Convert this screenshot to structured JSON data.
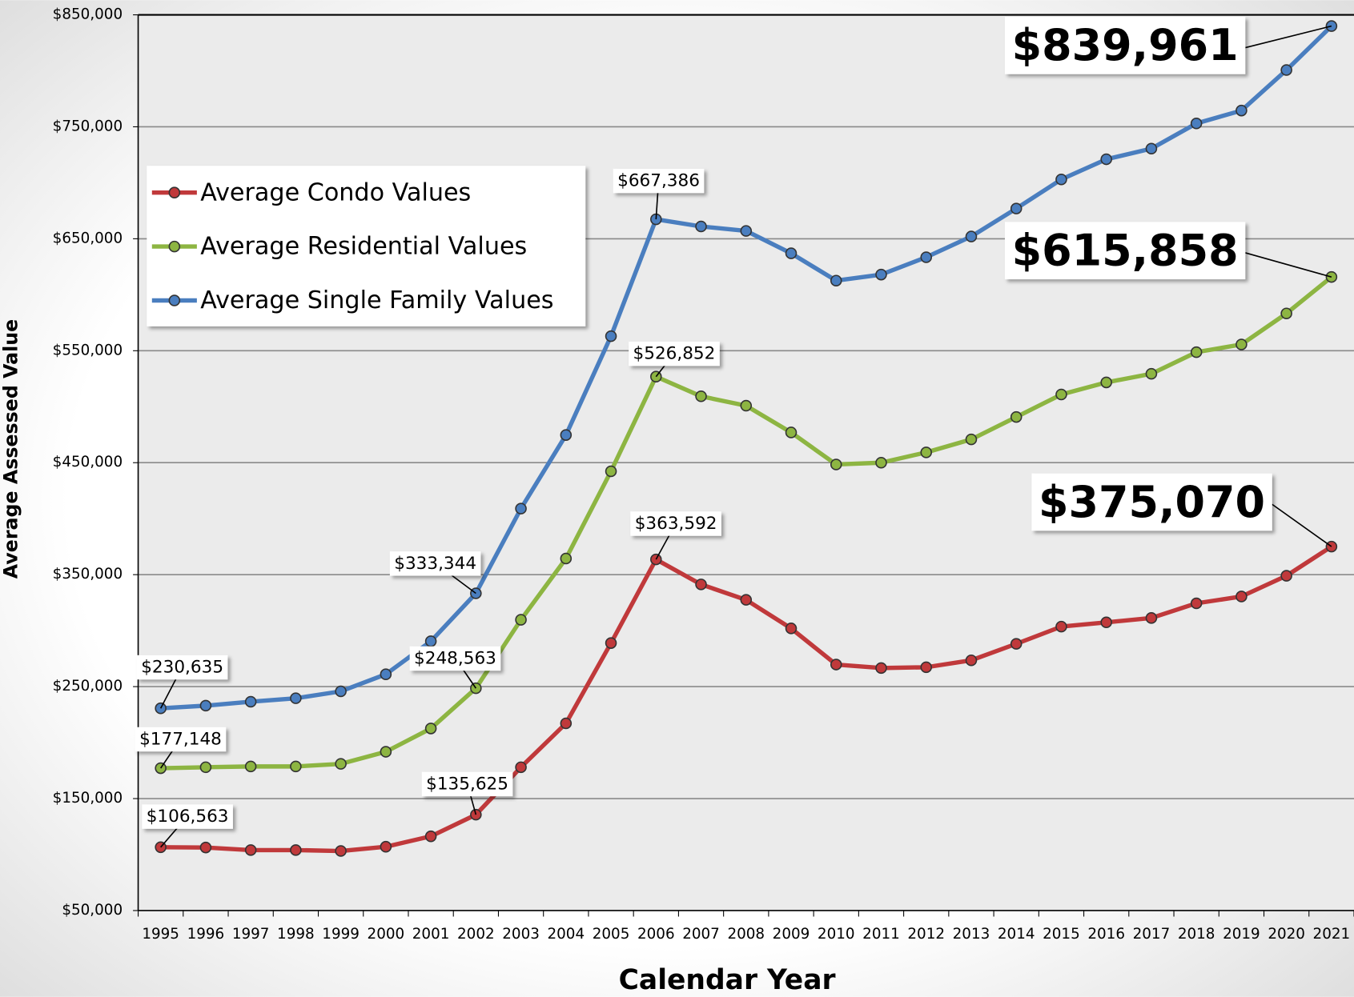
{
  "chart_data": {
    "type": "line",
    "y_label": "Average Assessed Value",
    "x_label": "Calendar Year",
    "legend": "upper left",
    "grid": true,
    "categories": [
      "1995",
      "1996",
      "1997",
      "1998",
      "1999",
      "2000",
      "2001",
      "2002",
      "2003",
      "2004",
      "2005",
      "2006",
      "2007",
      "2008",
      "2009",
      "2010",
      "2011",
      "2012",
      "2013",
      "2014",
      "2015",
      "2016",
      "2017",
      "2018",
      "2019",
      "2020",
      "2021"
    ],
    "ylim": [
      50000,
      850000
    ],
    "yticks": [
      {
        "value": 50000,
        "label": "$50,000"
      },
      {
        "value": 150000,
        "label": "$150,000"
      },
      {
        "value": 250000,
        "label": "$250,000"
      },
      {
        "value": 350000,
        "label": "$350,000"
      },
      {
        "value": 450000,
        "label": "$450,000"
      },
      {
        "value": 550000,
        "label": "$550,000"
      },
      {
        "value": 650000,
        "label": "$650,000"
      },
      {
        "value": 750000,
        "label": "$750,000"
      },
      {
        "value": 850000,
        "label": "$850,000"
      }
    ],
    "series": [
      {
        "name": "Average Condo Values",
        "color": "#c0393b",
        "values": [
          106563,
          106300,
          104000,
          104000,
          103200,
          107000,
          116300,
          135625,
          178000,
          217200,
          288900,
          363592,
          341300,
          327500,
          302000,
          269700,
          266600,
          267300,
          273500,
          288200,
          303600,
          307400,
          311300,
          324400,
          330500,
          349000,
          375070
        ],
        "value_labels": [
          "$106,563",
          null,
          null,
          null,
          null,
          null,
          null,
          "$135,625",
          null,
          null,
          null,
          "$363,592",
          null,
          null,
          null,
          null,
          null,
          null,
          null,
          null,
          null,
          null,
          null,
          null,
          null,
          null,
          "$375,070"
        ]
      },
      {
        "name": "Average Residential Values",
        "color": "#8db542",
        "values": [
          177148,
          178000,
          178700,
          178700,
          181000,
          191800,
          212600,
          248563,
          309700,
          364400,
          442300,
          526852,
          509300,
          500900,
          477000,
          448400,
          450000,
          459200,
          470800,
          490800,
          510900,
          521700,
          529400,
          548700,
          555600,
          583300,
          615858
        ],
        "value_labels": [
          "$177,148",
          null,
          null,
          null,
          null,
          null,
          null,
          "$248,563",
          null,
          null,
          null,
          "$526,852",
          null,
          null,
          null,
          null,
          null,
          null,
          null,
          null,
          null,
          null,
          null,
          null,
          null,
          null,
          "$615,858"
        ]
      },
      {
        "name": "Average Single Family Values",
        "color": "#4a7ebf",
        "values": [
          230635,
          233000,
          236500,
          239600,
          245800,
          261000,
          290500,
          333344,
          409000,
          474700,
          563000,
          667386,
          661000,
          657000,
          637000,
          612600,
          618000,
          633500,
          652000,
          677000,
          703000,
          721000,
          730500,
          753000,
          764500,
          800700,
          839961
        ],
        "value_labels": [
          "$230,635",
          null,
          null,
          null,
          null,
          null,
          null,
          "$333,344",
          null,
          null,
          null,
          "$667,386",
          null,
          null,
          null,
          null,
          null,
          null,
          null,
          null,
          null,
          null,
          null,
          null,
          null,
          null,
          "$839,961"
        ]
      }
    ]
  }
}
